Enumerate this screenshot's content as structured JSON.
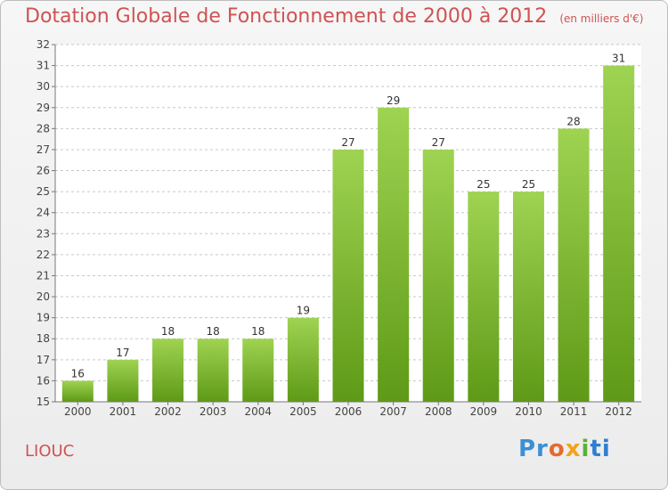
{
  "header": {
    "title": "Dotation Globale de Fonctionnement de 2000 à 2012",
    "subtitle": "(en milliers d'€)"
  },
  "footer": {
    "place": "LIOUC",
    "logo": [
      "Pr",
      "o",
      "x",
      "i",
      "ti"
    ]
  },
  "colors": {
    "title": "#d05252",
    "bar_top": "#9fd352",
    "bar_bottom": "#5e9a17",
    "grid": "#c8c8c8"
  },
  "chart_data": {
    "type": "bar",
    "categories": [
      "2000",
      "2001",
      "2002",
      "2003",
      "2004",
      "2005",
      "2006",
      "2007",
      "2008",
      "2009",
      "2010",
      "2011",
      "2012"
    ],
    "values": [
      16,
      17,
      18,
      18,
      18,
      19,
      27,
      29,
      27,
      25,
      25,
      28,
      31
    ],
    "title": "Dotation Globale de Fonctionnement de 2000 à 2012",
    "xlabel": "",
    "ylabel": "",
    "ylim": [
      15,
      32
    ],
    "yticks": [
      15,
      16,
      17,
      18,
      19,
      20,
      21,
      22,
      23,
      24,
      25,
      26,
      27,
      28,
      29,
      30,
      31,
      32
    ],
    "grid": true,
    "data_labels": true
  }
}
